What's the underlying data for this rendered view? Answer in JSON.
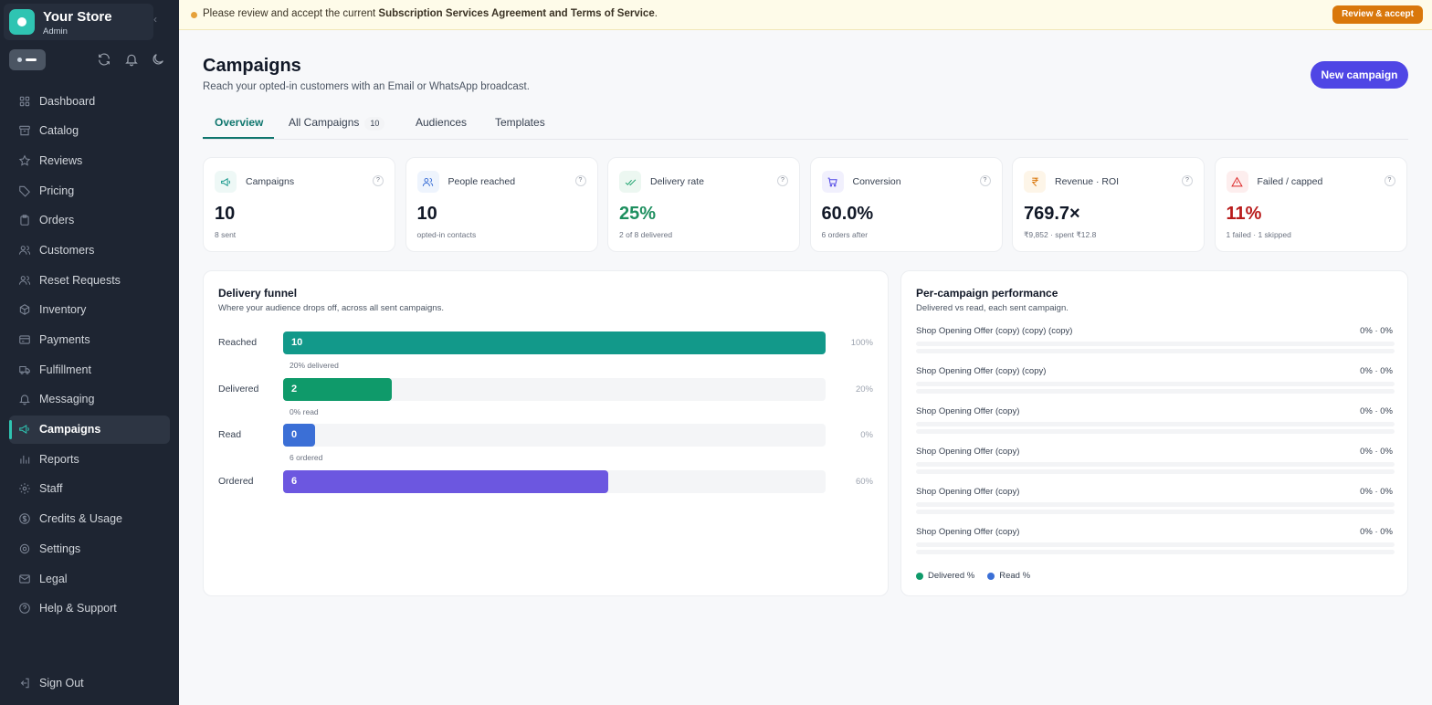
{
  "sidebar": {
    "store_name": "Your Store",
    "store_role": "Admin",
    "items": [
      {
        "label": "Dashboard",
        "icon": "grid-icon"
      },
      {
        "label": "Catalog",
        "icon": "archive-icon"
      },
      {
        "label": "Reviews",
        "icon": "star-icon"
      },
      {
        "label": "Pricing",
        "icon": "tag-icon"
      },
      {
        "label": "Orders",
        "icon": "clipboard-icon"
      },
      {
        "label": "Customers",
        "icon": "users-icon"
      },
      {
        "label": "Reset Requests",
        "icon": "user-key-icon"
      },
      {
        "label": "Inventory",
        "icon": "box-icon"
      },
      {
        "label": "Payments",
        "icon": "credit-card-icon"
      },
      {
        "label": "Fulfillment",
        "icon": "truck-icon"
      },
      {
        "label": "Messaging",
        "icon": "bell-icon"
      },
      {
        "label": "Campaigns",
        "icon": "megaphone-icon",
        "active": true
      },
      {
        "label": "Reports",
        "icon": "bar-chart-icon"
      },
      {
        "label": "Staff",
        "icon": "gear-icon"
      },
      {
        "label": "Credits & Usage",
        "icon": "dollar-icon"
      },
      {
        "label": "Settings",
        "icon": "cog-icon"
      },
      {
        "label": "Legal",
        "icon": "mail-icon"
      },
      {
        "label": "Help & Support",
        "icon": "help-icon"
      }
    ],
    "sign_out": "Sign Out"
  },
  "banner": {
    "prefix": "Please review and accept the current ",
    "bold": "Subscription Services Agreement and Terms of Service",
    "suffix": ".",
    "button": "Review & accept"
  },
  "header": {
    "title": "Campaigns",
    "subtitle": "Reach your opted-in customers with an Email or WhatsApp broadcast.",
    "new_button": "New campaign"
  },
  "tabs": [
    {
      "label": "Overview",
      "active": true
    },
    {
      "label": "All Campaigns",
      "badge": "10"
    },
    {
      "label": "Audiences"
    },
    {
      "label": "Templates"
    }
  ],
  "kpis": [
    {
      "label": "Campaigns",
      "value": "10",
      "sub": "8 sent",
      "icon": "megaphone-icon",
      "tint": "#eef8f6",
      "stroke": "#0f9488",
      "color": "#111827"
    },
    {
      "label": "People reached",
      "value": "10",
      "sub": "opted-in contacts",
      "icon": "users-icon",
      "tint": "#eef4fd",
      "stroke": "#3b6fd6",
      "color": "#111827"
    },
    {
      "label": "Delivery rate",
      "value": "25%",
      "sub": "2 of 8 delivered",
      "icon": "double-check-icon",
      "tint": "#ecf7f1",
      "stroke": "#16a06a",
      "color": "#1e8f5f"
    },
    {
      "label": "Conversion",
      "value": "60.0%",
      "sub": "6 orders after",
      "icon": "cart-icon",
      "tint": "#f1f0fd",
      "stroke": "#4f46e5",
      "color": "#111827"
    },
    {
      "label": "Revenue · ROI",
      "value": "769.7×",
      "sub": "₹9,852 · spent ₹12.8",
      "icon": "rupee-icon",
      "tint": "#fdf5e8",
      "stroke": "#d9770b",
      "color": "#111827"
    },
    {
      "label": "Failed / capped",
      "value": "11%",
      "sub": "1 failed · 1 skipped",
      "icon": "warning-icon",
      "tint": "#fdeeee",
      "stroke": "#dc2626",
      "color": "#b91c1c"
    }
  ],
  "funnel": {
    "title": "Delivery funnel",
    "subtitle": "Where your audience drops off, across all sent campaigns.",
    "steps": [
      {
        "label": "Reached",
        "count": "10",
        "fraction": 1.0,
        "pct": "100%",
        "note": "20% delivered",
        "color": "#12998a"
      },
      {
        "label": "Delivered",
        "count": "2",
        "fraction": 0.2,
        "pct": "20%",
        "note": "0% read",
        "color": "#0f9a6a"
      },
      {
        "label": "Read",
        "count": "0",
        "fraction": 0.0,
        "pct": "0%",
        "note": "6 ordered",
        "color": "#3b6fd6"
      },
      {
        "label": "Ordered",
        "count": "6",
        "fraction": 0.6,
        "pct": "60%",
        "note": "",
        "color": "#6c57e0"
      }
    ]
  },
  "performance": {
    "title": "Per-campaign performance",
    "subtitle": "Delivered vs read, each sent campaign.",
    "rows": [
      {
        "name": "Shop Opening Offer (copy) (copy) (copy)",
        "value": "0% · 0%",
        "delivered": 0,
        "read": 0
      },
      {
        "name": "Shop Opening Offer (copy) (copy)",
        "value": "0% · 0%",
        "delivered": 0,
        "read": 0
      },
      {
        "name": "Shop Opening Offer (copy)",
        "value": "0% · 0%",
        "delivered": 0,
        "read": 0
      },
      {
        "name": "Shop Opening Offer (copy)",
        "value": "0% · 0%",
        "delivered": 0,
        "read": 0
      },
      {
        "name": "Shop Opening Offer (copy)",
        "value": "0% · 0%",
        "delivered": 0,
        "read": 0
      },
      {
        "name": "Shop Opening Offer (copy)",
        "value": "0% · 0%",
        "delivered": 0,
        "read": 0
      }
    ],
    "legend": [
      {
        "label": "Delivered %",
        "color": "#0f9a6a"
      },
      {
        "label": "Read %",
        "color": "#3b6fd6"
      }
    ]
  }
}
